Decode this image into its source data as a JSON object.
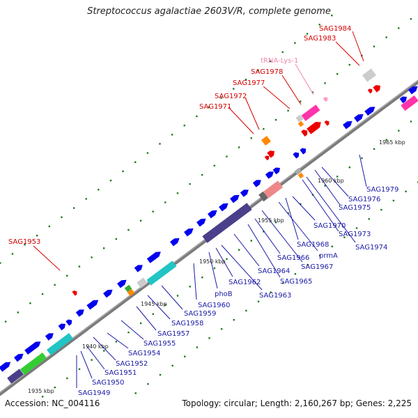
{
  "title": "Streptococcus agalactiae 2603V/R, complete genome",
  "footer": {
    "accession": "Accession: NC_004116",
    "summary": "Topology: circular; Length: 2,160,267 bp; Genes: 2,225"
  },
  "ticks": [
    "1935 kbp",
    "1940 kbp",
    "1945 kbp",
    "1950 kbp",
    "1955 kbp",
    "1960 kbp",
    "1965 kbp"
  ],
  "labels_upper": [
    "SAG1953",
    "SAG1971",
    "SAG1972",
    "SAG1977",
    "SAG1978",
    "tRNA-Lys-1",
    "SAG1983",
    "SAG1984"
  ],
  "labels_lower": [
    "SAG1949",
    "SAG1950",
    "SAG1951",
    "SAG1952",
    "SAG1954",
    "SAG1955",
    "SAG1957",
    "SAG1958",
    "SAG1959",
    "SAG1960",
    "phoB",
    "SAG1962",
    "SAG1963",
    "SAG1964",
    "SAG1965",
    "SAG1966",
    "SAG1967",
    "prmA",
    "SAG1968",
    "SAG1970",
    "SAG1973",
    "SAG1974",
    "SAG1975",
    "SAG1976",
    "SAG1979"
  ],
  "colors": {
    "backbone": "#888888",
    "forward_gene": "#0000ee",
    "rna_gene": "#dd0000",
    "grid_dots": "#1f7a1f",
    "label_red": "#d40000",
    "label_blue": "#1a1aa6",
    "label_pink": "#ee88b0"
  }
}
